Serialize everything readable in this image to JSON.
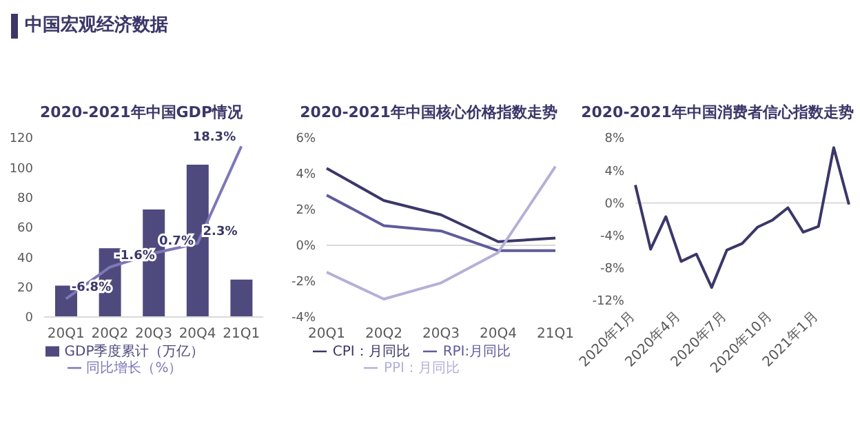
{
  "chart_data": [
    {
      "type": "bar",
      "title": "2020-2021年中国GDP情况",
      "annotations": [
        "中国宏观经济数据"
      ],
      "categories": [
        "20Q1",
        "20Q2",
        "20Q3",
        "20Q4",
        "21Q1"
      ],
      "series": [
        {
          "name": "GDP季度累计（万亿）",
          "type": "bar",
          "color": "#4e4a7e",
          "values": [
            21,
            46,
            72,
            102,
            25
          ]
        },
        {
          "name": "同比增长（%）",
          "type": "line",
          "axis": "y2",
          "color": "#7d78b8",
          "values": [
            -6.8,
            -1.6,
            0.7,
            2.3,
            18.3
          ],
          "value_labels": [
            "-6.8%",
            "-1.6%",
            "0.7%",
            "2.3%",
            "18.3%"
          ]
        }
      ],
      "ylim": [
        0,
        120
      ],
      "yticks": [
        0,
        20,
        40,
        60,
        80,
        100,
        120
      ],
      "legend": "bottom",
      "marker": "none"
    },
    {
      "type": "line",
      "title": "2020-2021年中国核心价格指数走势",
      "categories": [
        "20Q1",
        "20Q2",
        "20Q3",
        "20Q4",
        "21Q1"
      ],
      "series": [
        {
          "name": "CPI：月同比",
          "color": "#3b3768",
          "values": [
            4.3,
            2.5,
            1.7,
            0.2,
            0.4
          ]
        },
        {
          "name": "RPI:月同比",
          "color": "#5f5b9c",
          "values": [
            2.8,
            1.1,
            0.8,
            -0.3,
            -0.3
          ]
        },
        {
          "name": "PPI：月同比",
          "color": "#b4b0d8",
          "values": [
            -1.5,
            -3.0,
            -2.1,
            -0.4,
            4.4
          ]
        }
      ],
      "ylim": [
        -4,
        6
      ],
      "yticks": [
        {
          "value": -4,
          "label": "-4%"
        },
        {
          "value": -2,
          "label": "-2%"
        },
        {
          "value": 0,
          "label": "0%"
        },
        {
          "value": 2,
          "label": "2%"
        },
        {
          "value": 4,
          "label": "4%"
        },
        {
          "value": 6,
          "label": "6%"
        }
      ],
      "ref_lines": [
        {
          "axis": "y",
          "value": 0,
          "color": "#d9d9d9"
        }
      ],
      "legend": "bottom",
      "marker": "none"
    },
    {
      "type": "line",
      "title": "2020-2021年中国消费者信心指数走势",
      "categories": [
        "2020年1月",
        null,
        null,
        "2020年4月",
        null,
        null,
        "2020年7月",
        null,
        null,
        "2020年10月",
        null,
        null,
        "2021年1月",
        null,
        null
      ],
      "series": [
        {
          "color": "#3b3768",
          "values": [
            2.2,
            -5.7,
            -1.7,
            -7.2,
            -6.3,
            -10.4,
            -5.8,
            -5.0,
            -3.0,
            -2.1,
            -0.6,
            -3.6,
            -2.9,
            6.8,
            -0.2
          ]
        }
      ],
      "ylim": [
        -12,
        8
      ],
      "yticks": [
        {
          "value": -12,
          "label": "-12%"
        },
        {
          "value": -8,
          "label": "-8%"
        },
        {
          "value": -4,
          "label": "-4%"
        },
        {
          "value": 0,
          "label": "0%"
        },
        {
          "value": 4,
          "label": "4%"
        },
        {
          "value": 8,
          "label": "8%"
        }
      ],
      "ref_lines": [
        {
          "axis": "y",
          "value": 0,
          "color": "#d9d9d9"
        }
      ],
      "legend": false,
      "marker": "none"
    }
  ]
}
